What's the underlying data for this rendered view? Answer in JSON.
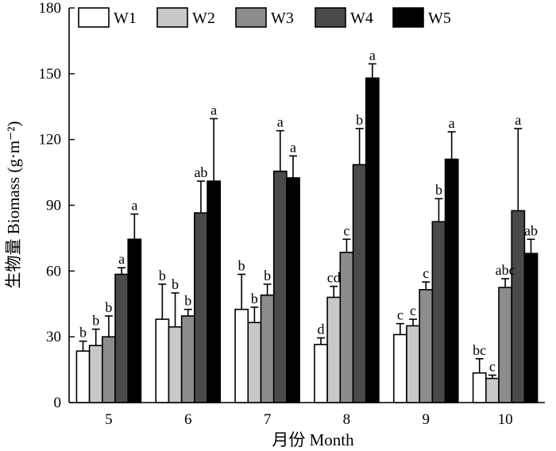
{
  "chart_data": {
    "type": "bar",
    "title": "",
    "xlabel": "月份 Month",
    "ylabel": "生物量 Biomass (g·m⁻²)",
    "ylim": [
      0,
      180
    ],
    "yticks": [
      0,
      30,
      60,
      90,
      120,
      150,
      180
    ],
    "categories": [
      "5",
      "6",
      "7",
      "8",
      "9",
      "10"
    ],
    "legend_position": "top",
    "series": [
      {
        "name": "W1",
        "color": "#ffffff",
        "values": [
          23.5,
          38,
          42.5,
          26.5,
          31,
          13.5
        ],
        "errors": [
          4.5,
          16,
          16,
          3,
          5,
          6.5
        ],
        "letters": [
          "b",
          "b",
          "b",
          "d",
          "c",
          "bc"
        ]
      },
      {
        "name": "W2",
        "color": "#c8c8c8",
        "values": [
          26,
          34.5,
          36.5,
          48,
          35,
          11
        ],
        "errors": [
          7.5,
          15.5,
          7,
          5,
          3,
          1.5
        ],
        "letters": [
          "b",
          "b",
          "b",
          "cd",
          "c",
          "c"
        ]
      },
      {
        "name": "W3",
        "color": "#8c8c8c",
        "values": [
          30,
          39.5,
          49,
          68.5,
          51.5,
          52.5
        ],
        "errors": [
          9.5,
          3,
          5,
          6,
          3.5,
          4
        ],
        "letters": [
          "b",
          "b",
          "b",
          "c",
          "c",
          "abc"
        ]
      },
      {
        "name": "W4",
        "color": "#4a4a4a",
        "values": [
          58.5,
          86.5,
          105.5,
          108.5,
          82.5,
          87.5
        ],
        "errors": [
          3,
          14.5,
          18.5,
          16.5,
          10.5,
          37.5
        ],
        "letters": [
          "a",
          "ab",
          "a",
          "b",
          "b",
          "a"
        ]
      },
      {
        "name": "W5",
        "color": "#000000",
        "values": [
          74.5,
          101,
          102.5,
          148,
          111,
          68
        ],
        "errors": [
          11.5,
          28.5,
          10,
          6.5,
          12.5,
          6.5
        ],
        "letters": [
          "a",
          "a",
          "a",
          "a",
          "a",
          "ab"
        ]
      }
    ]
  }
}
